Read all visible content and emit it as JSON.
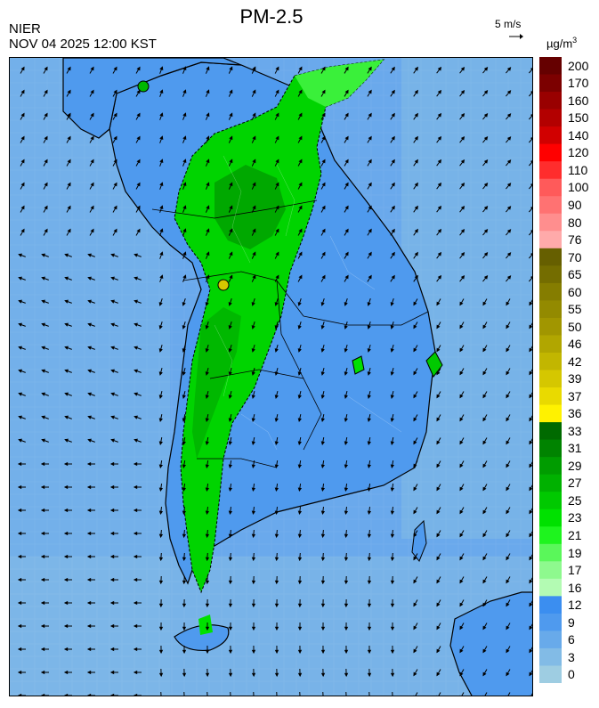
{
  "header": {
    "title": "PM-2.5",
    "agency": "NIER",
    "datetime": "NOV 04 2025 12:00 KST",
    "wind_reference": "5 m/s",
    "unit": "µg/m",
    "unit_exponent": "3"
  },
  "legend": {
    "labels": [
      "200",
      "170",
      "160",
      "150",
      "140",
      "120",
      "110",
      "100",
      "90",
      "80",
      "76",
      "70",
      "65",
      "60",
      "55",
      "50",
      "46",
      "42",
      "39",
      "37",
      "36",
      "33",
      "31",
      "29",
      "27",
      "25",
      "23",
      "21",
      "19",
      "17",
      "16",
      "12",
      "9",
      "6",
      "3",
      "0"
    ],
    "colors": [
      "#650000",
      "#7c0000",
      "#990000",
      "#b30000",
      "#d10000",
      "#ff0000",
      "#ff2d2d",
      "#ff5a5a",
      "#ff7272",
      "#ff8e8e",
      "#ffaaaa",
      "#665f00",
      "#746d00",
      "#857d00",
      "#938a00",
      "#a19600",
      "#b1a600",
      "#c2b600",
      "#d5c700",
      "#e9da00",
      "#fff200",
      "#006a00",
      "#008300",
      "#009c00",
      "#00b100",
      "#00c900",
      "#00e100",
      "#1ef41e",
      "#5af75a",
      "#8ef98e",
      "#b3fbb3",
      "#3b8ef0",
      "#4f9aee",
      "#68aaea",
      "#82bbe6",
      "#9ecde2"
    ]
  },
  "map": {
    "background_color": "#6aa9ec",
    "pm25_field": "highest concentrations (green, 16–33 µg/m³) along the western plains from Seoul to Jeolla; remaining land and seas 6–16 µg/m³ (blue)",
    "wind_field": "northerly to north-westerly flow over the peninsula and southern seas, north-easterly over the Yellow Sea"
  }
}
